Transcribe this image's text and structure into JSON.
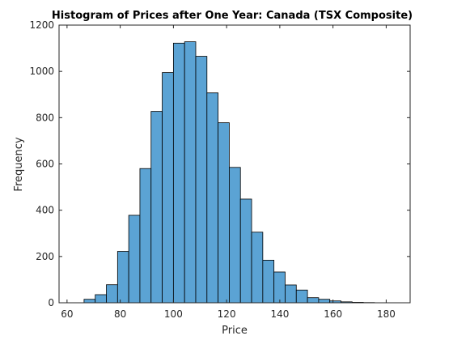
{
  "chart_data": {
    "type": "bar",
    "title": "Histogram of Prices after One Year: Canada (TSX Composite)",
    "xlabel": "Price",
    "ylabel": "Frequency",
    "xlim": [
      57,
      189
    ],
    "ylim": [
      0,
      1200
    ],
    "xticks": [
      "60",
      "80",
      "100",
      "120",
      "140",
      "160",
      "180"
    ],
    "yticks": [
      "0",
      "200",
      "400",
      "600",
      "800",
      "1000",
      "1200"
    ],
    "bin_width": 4.2,
    "bin_edges_start": 66.4,
    "values": [
      15,
      35,
      78,
      222,
      378,
      580,
      827,
      995,
      1122,
      1128,
      1065,
      907,
      778,
      585,
      448,
      305,
      184,
      133,
      77,
      55,
      22,
      15,
      8,
      4,
      2,
      1,
      0
    ],
    "bar_color": "#5ba3d4",
    "bar_edge_color": "#000000",
    "grid": false,
    "box": true
  }
}
